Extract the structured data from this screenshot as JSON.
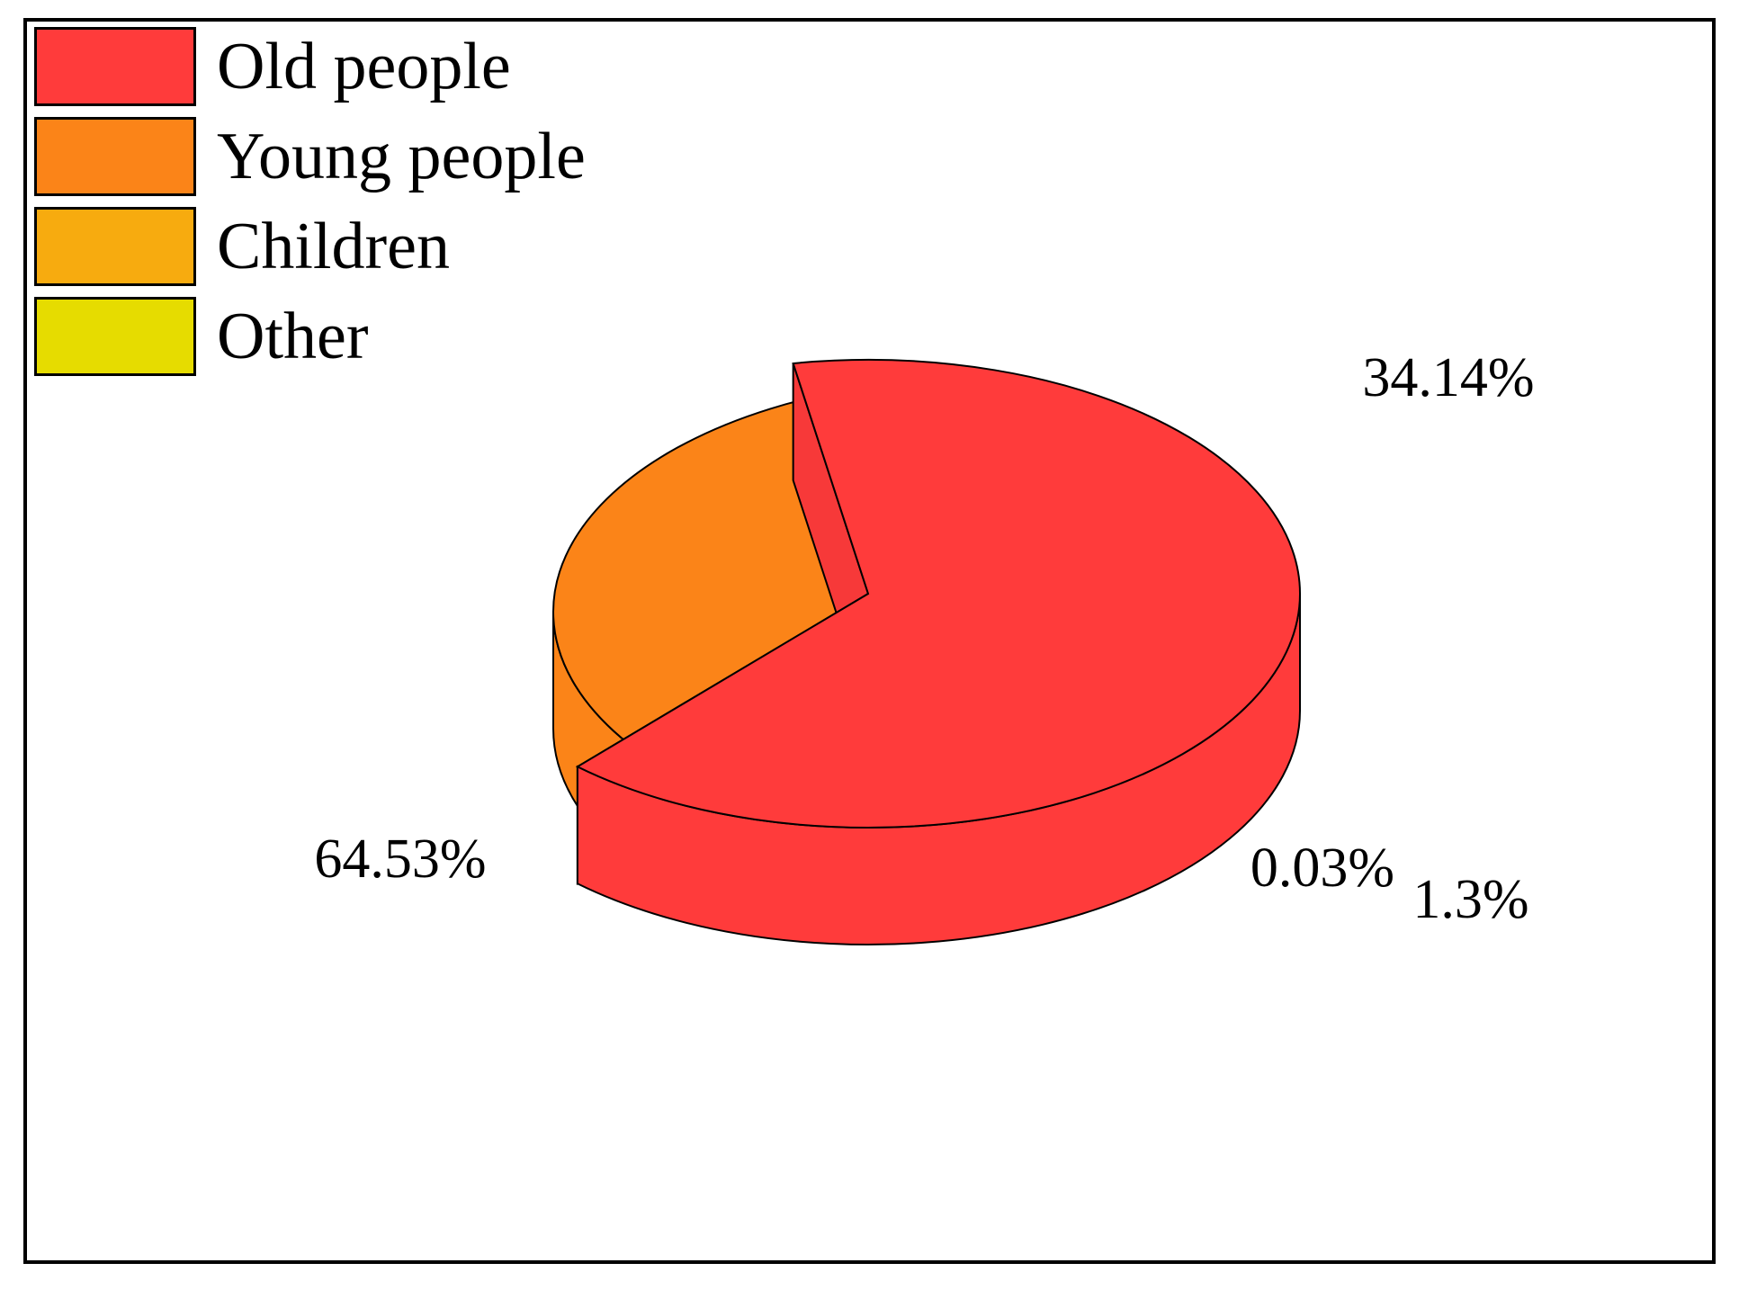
{
  "chart_data": {
    "type": "pie",
    "style": "3d-exploded",
    "slices": [
      {
        "name": "Old people",
        "value": 64.53,
        "label": "64.53%",
        "color": "#ff3b3b"
      },
      {
        "name": "Young people",
        "value": 34.14,
        "label": "34.14%",
        "color": "#fb8418"
      },
      {
        "name": "Children",
        "value": 1.3,
        "label": "1.3%",
        "color": "#f7ab0f"
      },
      {
        "name": "Other",
        "value": 0.03,
        "label": "0.03%",
        "color": "#e6dc00"
      }
    ],
    "legend_placement": "top-left"
  }
}
